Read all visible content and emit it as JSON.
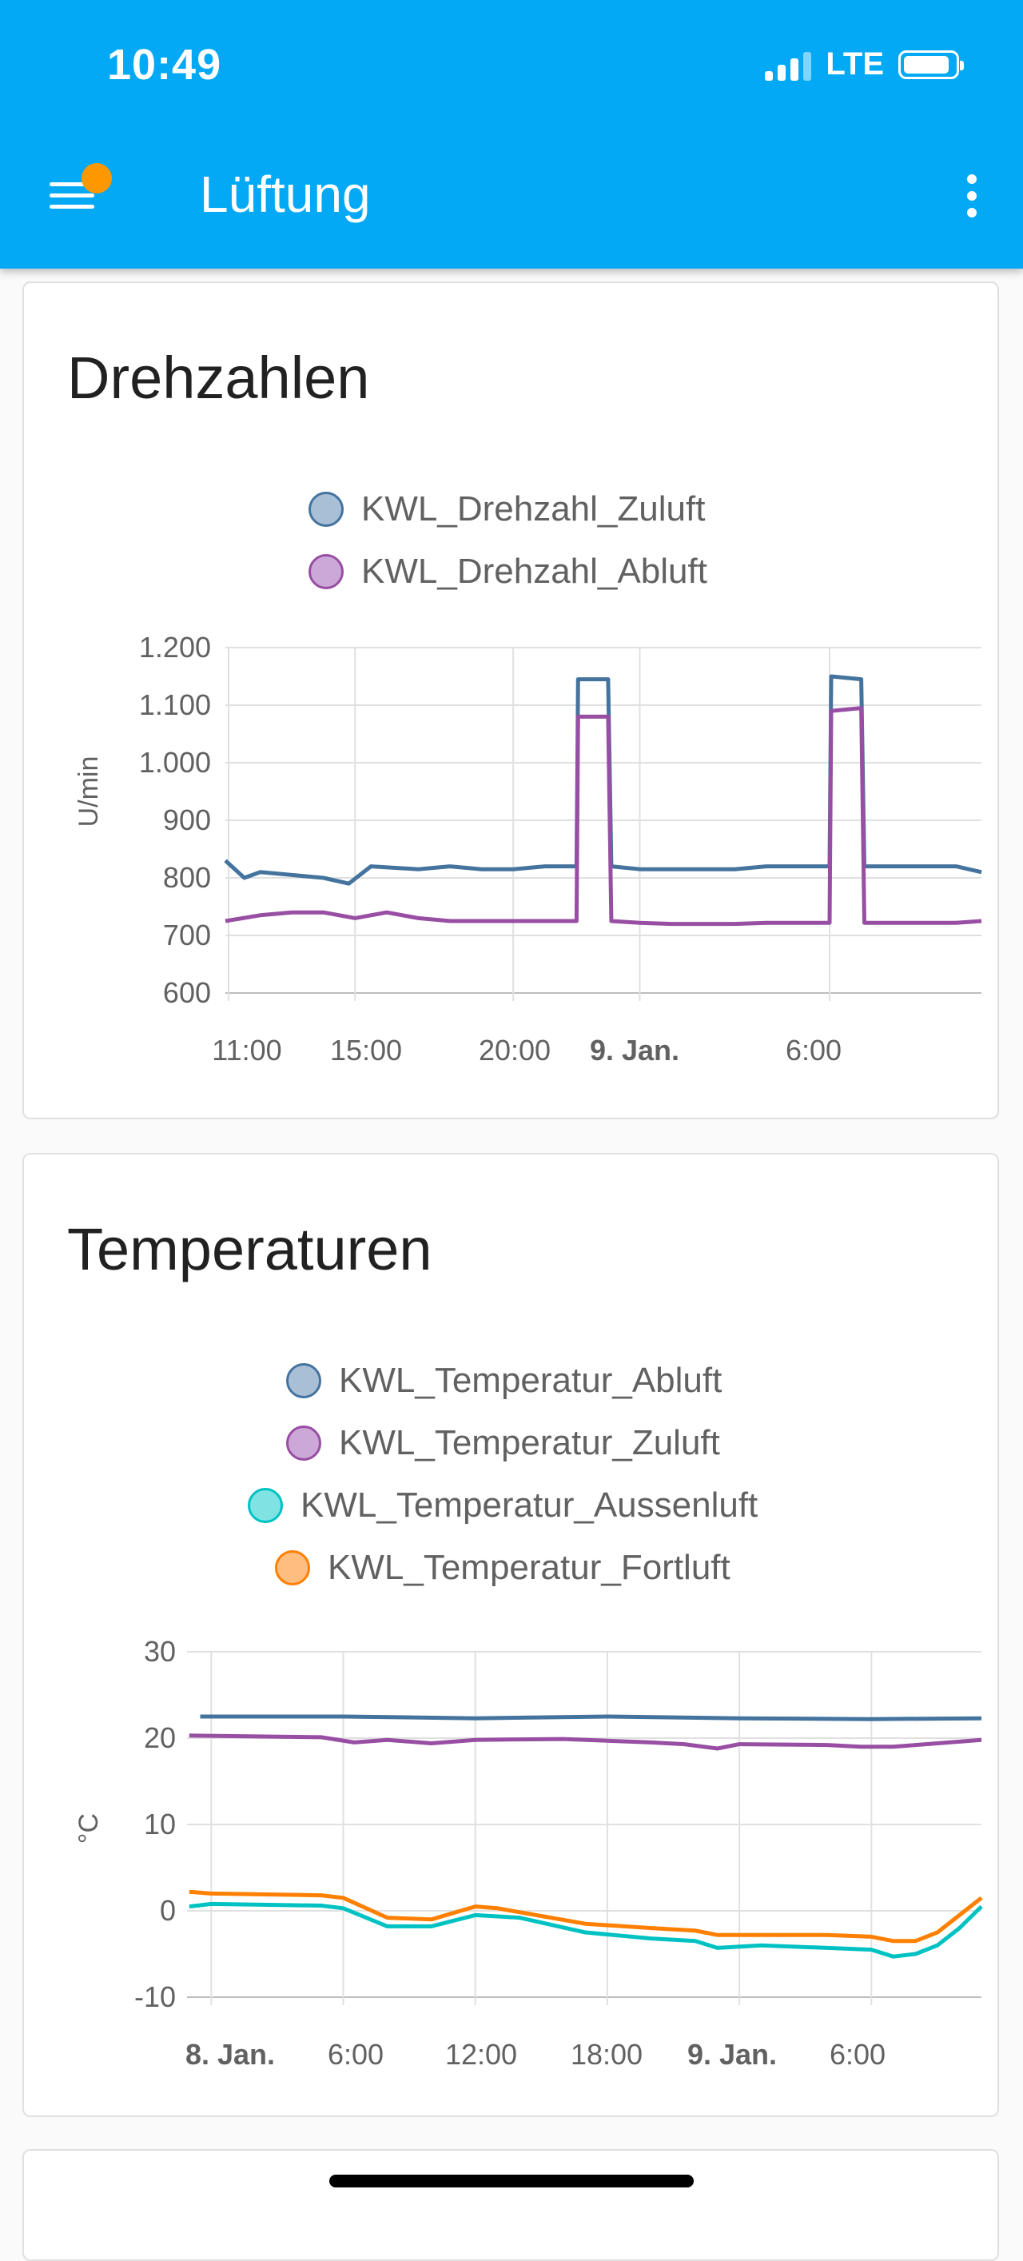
{
  "status_bar": {
    "time": "10:49",
    "network": "LTE"
  },
  "app_bar": {
    "title": "Lüftung",
    "menu_icon": "hamburger-menu-icon",
    "badge_color": "#ff9800",
    "overflow_icon": "more-vert-icon"
  },
  "cards": [
    {
      "title": "Drehzahlen",
      "legend": [
        {
          "label": "KWL_Drehzahl_Zuluft",
          "fill": "#a9bfd6",
          "stroke": "#44739e"
        },
        {
          "label": "KWL_Drehzahl_Abluft",
          "fill": "#cba8d8",
          "stroke": "#984ea3"
        }
      ],
      "ylabel": "U/min",
      "yticks": [
        "1.200",
        "1.100",
        "1.000",
        "900",
        "800",
        "700",
        "600"
      ],
      "xticks": [
        "11:00",
        "15:00",
        "20:00",
        "9. Jan.",
        "6:00"
      ]
    },
    {
      "title": "Temperaturen",
      "legend": [
        {
          "label": "KWL_Temperatur_Abluft",
          "fill": "#a9bfd6",
          "stroke": "#44739e"
        },
        {
          "label": "KWL_Temperatur_Zuluft",
          "fill": "#cba8d8",
          "stroke": "#984ea3"
        },
        {
          "label": "KWL_Temperatur_Aussenluft",
          "fill": "#7fe3e3",
          "stroke": "#00c2c2"
        },
        {
          "label": "KWL_Temperatur_Fortluft",
          "fill": "#ffbd80",
          "stroke": "#ff7f00"
        }
      ],
      "ylabel": "°C",
      "yticks": [
        "30",
        "20",
        "10",
        "0",
        "-10"
      ],
      "xticks": [
        "8. Jan.",
        "6:00",
        "12:00",
        "18:00",
        "9. Jan.",
        "6:00"
      ]
    }
  ],
  "chart_data": [
    {
      "type": "line",
      "title": "Drehzahlen",
      "ylabel": "U/min",
      "ylim": [
        600,
        1200
      ],
      "x_unit": "hours since 8. Jan. 00:00",
      "xlim": [
        10.9,
        34.8
      ],
      "xtick_positions": [
        11,
        15,
        20,
        24,
        30
      ],
      "xticks": [
        "11:00",
        "15:00",
        "20:00",
        "9. Jan.",
        "6:00"
      ],
      "grid": true,
      "legend": "top-center",
      "series": [
        {
          "name": "KWL_Drehzahl_Zuluft",
          "color": "#44739e",
          "points": [
            [
              10.9,
              830
            ],
            [
              11.5,
              800
            ],
            [
              12,
              810
            ],
            [
              13,
              805
            ],
            [
              14,
              800
            ],
            [
              14.8,
              790
            ],
            [
              15.5,
              820
            ],
            [
              17,
              815
            ],
            [
              18,
              820
            ],
            [
              19,
              815
            ],
            [
              20,
              815
            ],
            [
              21,
              820
            ],
            [
              22,
              820
            ],
            [
              22.05,
              1145
            ],
            [
              23,
              1145
            ],
            [
              23.1,
              820
            ],
            [
              24,
              815
            ],
            [
              25,
              815
            ],
            [
              27,
              815
            ],
            [
              28,
              820
            ],
            [
              30,
              820
            ],
            [
              30.05,
              1150
            ],
            [
              31,
              1145
            ],
            [
              31.1,
              820
            ],
            [
              33,
              820
            ],
            [
              34,
              820
            ],
            [
              34.8,
              810
            ]
          ]
        },
        {
          "name": "KWL_Drehzahl_Abluft",
          "color": "#984ea3",
          "points": [
            [
              10.9,
              725
            ],
            [
              12,
              735
            ],
            [
              13,
              740
            ],
            [
              14,
              740
            ],
            [
              15,
              730
            ],
            [
              16,
              740
            ],
            [
              17,
              730
            ],
            [
              18,
              725
            ],
            [
              19,
              725
            ],
            [
              20,
              725
            ],
            [
              21,
              725
            ],
            [
              22,
              725
            ],
            [
              22.05,
              1080
            ],
            [
              23,
              1080
            ],
            [
              23.1,
              725
            ],
            [
              24,
              722
            ],
            [
              25,
              720
            ],
            [
              27,
              720
            ],
            [
              28,
              722
            ],
            [
              30,
              722
            ],
            [
              30.05,
              1090
            ],
            [
              31,
              1095
            ],
            [
              31.1,
              722
            ],
            [
              33,
              722
            ],
            [
              34,
              722
            ],
            [
              34.8,
              725
            ]
          ]
        }
      ]
    },
    {
      "type": "line",
      "title": "Temperaturen",
      "ylabel": "°C",
      "ylim": [
        -10,
        30
      ],
      "x_unit": "hours since 8. Jan. 00:00",
      "xlim": [
        -1.1,
        35
      ],
      "xtick_positions": [
        0,
        6,
        12,
        18,
        24,
        30
      ],
      "xticks": [
        "8. Jan.",
        "6:00",
        "12:00",
        "18:00",
        "9. Jan.",
        "6:00"
      ],
      "grid": true,
      "legend": "top-center",
      "series": [
        {
          "name": "KWL_Temperatur_Abluft",
          "color": "#44739e",
          "points": [
            [
              -0.5,
              22.5
            ],
            [
              6,
              22.5
            ],
            [
              12,
              22.3
            ],
            [
              18,
              22.5
            ],
            [
              24,
              22.3
            ],
            [
              30,
              22.2
            ],
            [
              35,
              22.3
            ]
          ]
        },
        {
          "name": "KWL_Temperatur_Zuluft",
          "color": "#984ea3",
          "points": [
            [
              -1,
              20.3
            ],
            [
              5,
              20.1
            ],
            [
              6.5,
              19.5
            ],
            [
              8,
              19.8
            ],
            [
              10,
              19.4
            ],
            [
              12,
              19.8
            ],
            [
              16,
              19.9
            ],
            [
              20,
              19.5
            ],
            [
              21.5,
              19.3
            ],
            [
              23,
              18.8
            ],
            [
              24,
              19.3
            ],
            [
              28,
              19.2
            ],
            [
              29.5,
              19.0
            ],
            [
              31,
              19.0
            ],
            [
              32,
              19.2
            ],
            [
              35,
              19.8
            ]
          ]
        },
        {
          "name": "KWL_Temperatur_Aussenluft",
          "color": "#00c2c2",
          "points": [
            [
              -1,
              0.5
            ],
            [
              0,
              0.8
            ],
            [
              5,
              0.6
            ],
            [
              6,
              0.3
            ],
            [
              8,
              -1.8
            ],
            [
              10,
              -1.8
            ],
            [
              12,
              -0.5
            ],
            [
              14,
              -0.8
            ],
            [
              17,
              -2.5
            ],
            [
              20,
              -3.2
            ],
            [
              22,
              -3.5
            ],
            [
              23,
              -4.3
            ],
            [
              25,
              -4.0
            ],
            [
              28,
              -4.3
            ],
            [
              30,
              -4.5
            ],
            [
              31,
              -5.3
            ],
            [
              32,
              -5.0
            ],
            [
              33,
              -4.0
            ],
            [
              34,
              -2.0
            ],
            [
              35,
              0.5
            ]
          ]
        },
        {
          "name": "KWL_Temperatur_Fortluft",
          "color": "#ff7f00",
          "points": [
            [
              -1,
              2.2
            ],
            [
              0,
              2.0
            ],
            [
              5,
              1.8
            ],
            [
              6,
              1.5
            ],
            [
              8,
              -0.8
            ],
            [
              10,
              -1.0
            ],
            [
              12,
              0.5
            ],
            [
              13,
              0.3
            ],
            [
              17,
              -1.5
            ],
            [
              20,
              -2.0
            ],
            [
              22,
              -2.3
            ],
            [
              23,
              -2.8
            ],
            [
              25,
              -2.8
            ],
            [
              28,
              -2.8
            ],
            [
              30,
              -3.0
            ],
            [
              31,
              -3.5
            ],
            [
              32,
              -3.5
            ],
            [
              33,
              -2.5
            ],
            [
              34,
              -0.5
            ],
            [
              35,
              1.5
            ]
          ]
        }
      ]
    }
  ]
}
